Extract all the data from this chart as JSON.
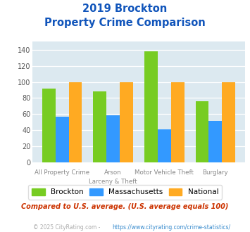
{
  "title_line1": "2019 Brockton",
  "title_line2": "Property Crime Comparison",
  "row1_labels": [
    "All Property Crime",
    "Arson",
    "Motor Vehicle Theft",
    "Burglary"
  ],
  "row2_labels": [
    "",
    "Larceny & Theft",
    "",
    ""
  ],
  "brockton": [
    92,
    88,
    138,
    76
  ],
  "massachusetts": [
    57,
    59,
    41,
    52
  ],
  "national": [
    100,
    100,
    100,
    100
  ],
  "colors": {
    "brockton": "#77cc22",
    "massachusetts": "#3399ff",
    "national": "#ffaa22"
  },
  "ylim": [
    0,
    150
  ],
  "yticks": [
    0,
    20,
    40,
    60,
    80,
    100,
    120,
    140
  ],
  "title_color": "#1155bb",
  "plot_bg": "#dce9f0",
  "subtitle_text": "Compared to U.S. average. (U.S. average equals 100)",
  "subtitle_color": "#cc3300",
  "footer_text": "© 2025 CityRating.com - https://www.cityrating.com/crime-statistics/",
  "footer_color": "#aaaaaa",
  "footer_link_color": "#3388cc",
  "legend_labels": [
    "Brockton",
    "Massachusetts",
    "National"
  ]
}
